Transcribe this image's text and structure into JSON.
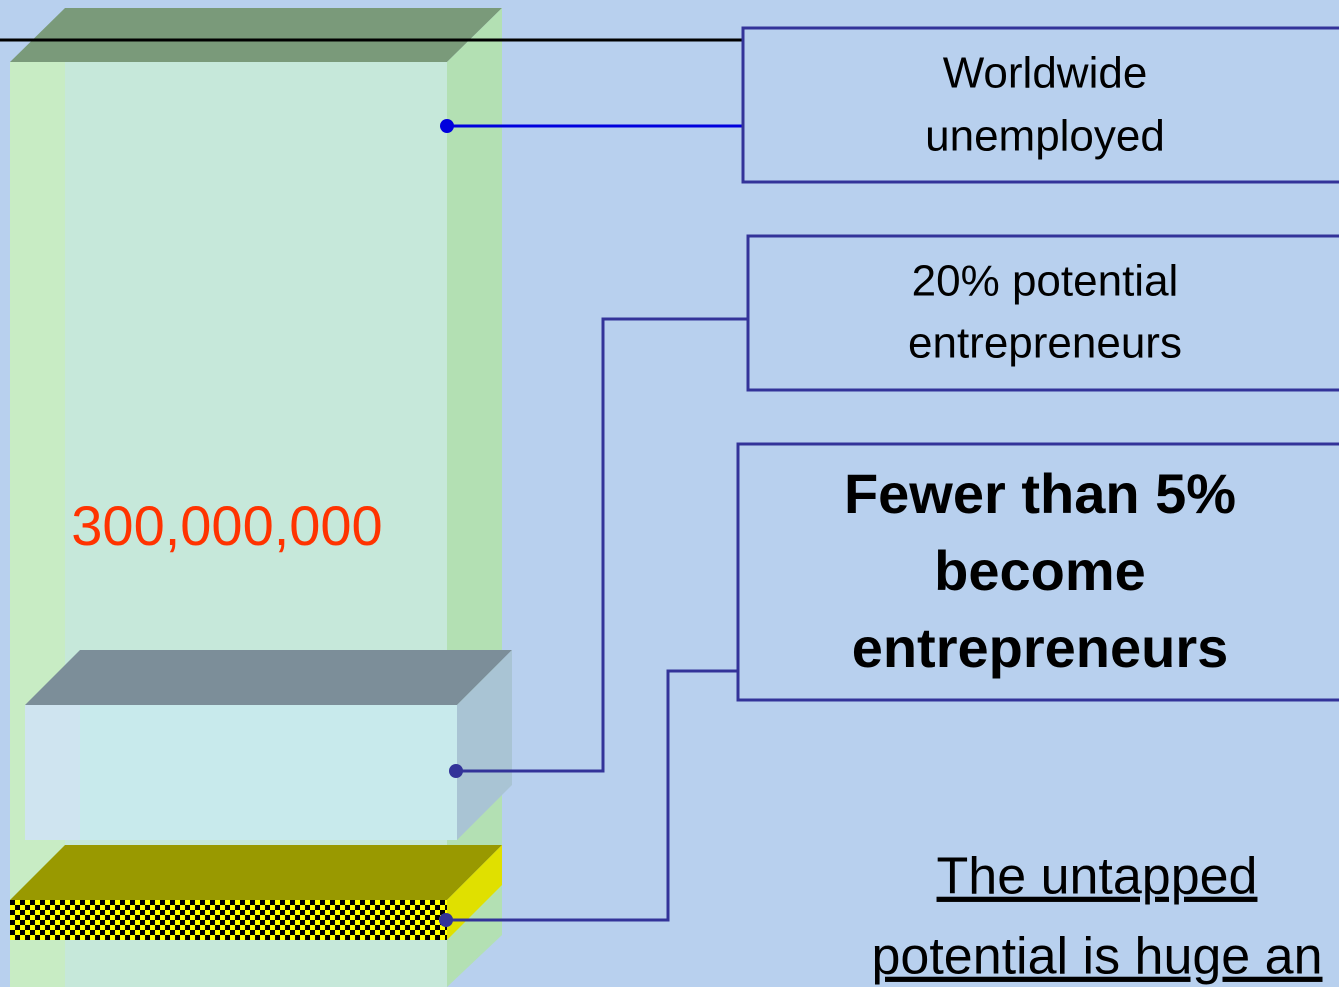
{
  "figure_label": "300,000,000",
  "callouts": [
    {
      "lines": [
        "Worldwide",
        "unemployed"
      ]
    },
    {
      "lines": [
        "20% potential",
        "entrepreneurs"
      ]
    },
    {
      "lines": [
        "Fewer than 5%",
        "become",
        "entrepreneurs"
      ]
    }
  ],
  "footer": {
    "lines": [
      "The untapped",
      "potential is huge an"
    ]
  }
}
